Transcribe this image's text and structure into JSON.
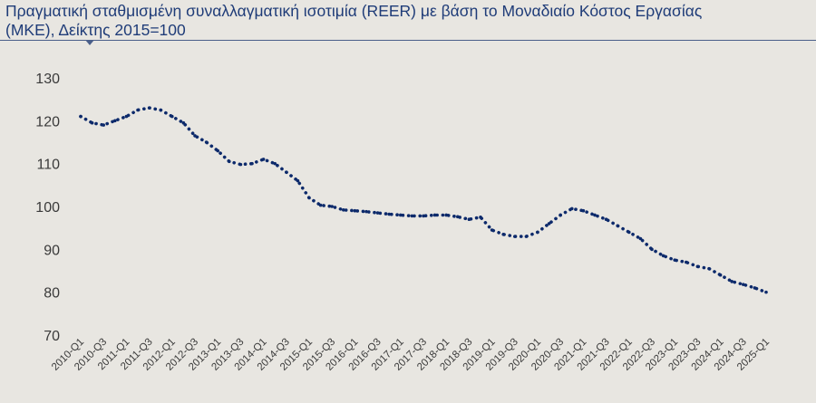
{
  "title_line1": "Πραγματική σταθμισμένη συναλλαγματική ισοτιμία (REER) με βάση το Μοναδιαίο Κόστος Εργασίας",
  "title_line2": "(ΜΚΕ), Δείκτης 2015=100",
  "colors": {
    "line": "#0d2a6b",
    "title": "#1f3c78",
    "background": "#e8e6e1"
  },
  "chart_data": {
    "type": "line",
    "line_style": "dotted",
    "grid": false,
    "legend": "none",
    "ylim": [
      70,
      130
    ],
    "yticks": [
      130,
      120,
      110,
      100,
      90,
      80,
      70
    ],
    "x_tick_labels": [
      "2010-Q1",
      "2010-Q3",
      "2011-Q1",
      "2011-Q3",
      "2012-Q1",
      "2012-Q3",
      "2013-Q1",
      "2013-Q3",
      "2014-Q1",
      "2014-Q3",
      "2015-Q1",
      "2015-Q3",
      "2016-Q1",
      "2016-Q3",
      "2017-Q1",
      "2017-Q3",
      "2018-Q1",
      "2018-Q3",
      "2019-Q1",
      "2019-Q3",
      "2020-Q1",
      "2020-Q3",
      "2021-Q1",
      "2021-Q3",
      "2022-Q1",
      "2022-Q3",
      "2023-Q1",
      "2023-Q3",
      "2024-Q1",
      "2024-Q3",
      "2025-Q1"
    ],
    "x": [
      "2010-Q1",
      "2010-Q2",
      "2010-Q3",
      "2010-Q4",
      "2011-Q1",
      "2011-Q2",
      "2011-Q3",
      "2011-Q4",
      "2012-Q1",
      "2012-Q2",
      "2012-Q3",
      "2012-Q4",
      "2013-Q1",
      "2013-Q2",
      "2013-Q3",
      "2013-Q4",
      "2014-Q1",
      "2014-Q2",
      "2014-Q3",
      "2014-Q4",
      "2015-Q1",
      "2015-Q2",
      "2015-Q3",
      "2015-Q4",
      "2016-Q1",
      "2016-Q2",
      "2016-Q3",
      "2016-Q4",
      "2017-Q1",
      "2017-Q2",
      "2017-Q3",
      "2017-Q4",
      "2018-Q1",
      "2018-Q2",
      "2018-Q3",
      "2018-Q4",
      "2019-Q1",
      "2019-Q2",
      "2019-Q3",
      "2019-Q4",
      "2020-Q1",
      "2020-Q2",
      "2020-Q3",
      "2020-Q4",
      "2021-Q1",
      "2021-Q2",
      "2021-Q3",
      "2021-Q4",
      "2022-Q1",
      "2022-Q2",
      "2022-Q3",
      "2022-Q4",
      "2023-Q1",
      "2023-Q2",
      "2023-Q3",
      "2023-Q4",
      "2024-Q1",
      "2024-Q2",
      "2024-Q3",
      "2024-Q4",
      "2025-Q1"
    ],
    "values": [
      121.0,
      119.5,
      119.0,
      120.0,
      121.0,
      122.5,
      123.0,
      122.5,
      121.0,
      119.5,
      116.5,
      115.0,
      113.0,
      110.5,
      109.8,
      110.0,
      111.0,
      110.0,
      108.0,
      106.0,
      102.0,
      100.3,
      100.0,
      99.2,
      99.0,
      98.8,
      98.5,
      98.2,
      98.0,
      97.8,
      97.8,
      98.0,
      98.0,
      97.6,
      97.0,
      97.5,
      94.5,
      93.5,
      93.0,
      93.0,
      94.0,
      96.0,
      98.0,
      99.5,
      99.0,
      98.0,
      97.0,
      95.5,
      94.0,
      92.5,
      90.0,
      88.5,
      87.5,
      87.0,
      86.0,
      85.5,
      84.0,
      82.5,
      81.8,
      81.0,
      80.0
    ]
  }
}
